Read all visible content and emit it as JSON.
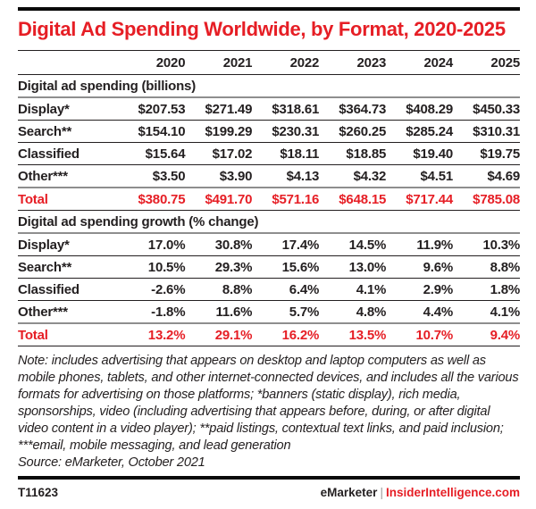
{
  "title": "Digital Ad Spending Worldwide, by Format, 2020-2025",
  "colors": {
    "accent_red": "#e61e25",
    "text_black": "#231f20",
    "rule_gray": "#8e8e8e"
  },
  "table": {
    "years": [
      "2020",
      "2021",
      "2022",
      "2023",
      "2024",
      "2025"
    ],
    "sections": [
      {
        "header": "Digital ad spending (billions)",
        "rows": [
          {
            "label": "Display*",
            "values": [
              "$207.53",
              "$271.49",
              "$318.61",
              "$364.73",
              "$408.29",
              "$450.33"
            ]
          },
          {
            "label": "Search**",
            "values": [
              "$154.10",
              "$199.29",
              "$230.31",
              "$260.25",
              "$285.24",
              "$310.31"
            ]
          },
          {
            "label": "Classified",
            "values": [
              "$15.64",
              "$17.02",
              "$18.11",
              "$18.85",
              "$19.40",
              "$19.75"
            ]
          },
          {
            "label": "Other***",
            "values": [
              "$3.50",
              "$3.90",
              "$4.13",
              "$4.32",
              "$4.51",
              "$4.69"
            ]
          }
        ],
        "total": {
          "label": "Total",
          "values": [
            "$380.75",
            "$491.70",
            "$571.16",
            "$648.15",
            "$717.44",
            "$785.08"
          ]
        }
      },
      {
        "header": "Digital ad spending growth (% change)",
        "rows": [
          {
            "label": "Display*",
            "values": [
              "17.0%",
              "30.8%",
              "17.4%",
              "14.5%",
              "11.9%",
              "10.3%"
            ]
          },
          {
            "label": "Search**",
            "values": [
              "10.5%",
              "29.3%",
              "15.6%",
              "13.0%",
              "9.6%",
              "8.8%"
            ]
          },
          {
            "label": "Classified",
            "values": [
              "-2.6%",
              "8.8%",
              "6.4%",
              "4.1%",
              "2.9%",
              "1.8%"
            ]
          },
          {
            "label": "Other***",
            "values": [
              "-1.8%",
              "11.6%",
              "5.7%",
              "4.8%",
              "4.4%",
              "4.1%"
            ]
          }
        ],
        "total": {
          "label": "Total",
          "values": [
            "13.2%",
            "29.1%",
            "16.2%",
            "13.5%",
            "10.7%",
            "9.4%"
          ]
        }
      }
    ]
  },
  "note": "Note: includes advertising that appears on desktop and laptop computers as well as mobile phones, tablets, and other internet-connected devices, and includes all the various formats for advertising on those platforms; *banners (static display), rich media, sponsorships, video (including advertising that appears before, during, or after digital video content in a video player); **paid listings, contextual text links, and paid inclusion; ***email, mobile messaging, and lead generation",
  "source": "Source: eMarketer, October 2021",
  "footer": {
    "chart_id": "T11623",
    "brand_left": "eMarketer",
    "separator": "|",
    "brand_right": "InsiderIntelligence.com"
  },
  "chart_data": {
    "type": "table",
    "title": "Digital Ad Spending Worldwide, by Format, 2020-2025",
    "columns": [
      2020,
      2021,
      2022,
      2023,
      2024,
      2025
    ],
    "sections": [
      {
        "name": "Digital ad spending (billions)",
        "unit": "USD billions",
        "series": [
          {
            "name": "Display*",
            "values": [
              207.53,
              271.49,
              318.61,
              364.73,
              408.29,
              450.33
            ]
          },
          {
            "name": "Search**",
            "values": [
              154.1,
              199.29,
              230.31,
              260.25,
              285.24,
              310.31
            ]
          },
          {
            "name": "Classified",
            "values": [
              15.64,
              17.02,
              18.11,
              18.85,
              19.4,
              19.75
            ]
          },
          {
            "name": "Other***",
            "values": [
              3.5,
              3.9,
              4.13,
              4.32,
              4.51,
              4.69
            ]
          },
          {
            "name": "Total",
            "values": [
              380.75,
              491.7,
              571.16,
              648.15,
              717.44,
              785.08
            ]
          }
        ]
      },
      {
        "name": "Digital ad spending growth (% change)",
        "unit": "% change",
        "series": [
          {
            "name": "Display*",
            "values": [
              17.0,
              30.8,
              17.4,
              14.5,
              11.9,
              10.3
            ]
          },
          {
            "name": "Search**",
            "values": [
              10.5,
              29.3,
              15.6,
              13.0,
              9.6,
              8.8
            ]
          },
          {
            "name": "Classified",
            "values": [
              -2.6,
              8.8,
              6.4,
              4.1,
              2.9,
              1.8
            ]
          },
          {
            "name": "Other***",
            "values": [
              -1.8,
              11.6,
              5.7,
              4.8,
              4.4,
              4.1
            ]
          },
          {
            "name": "Total",
            "values": [
              13.2,
              29.1,
              16.2,
              13.5,
              10.7,
              9.4
            ]
          }
        ]
      }
    ]
  }
}
